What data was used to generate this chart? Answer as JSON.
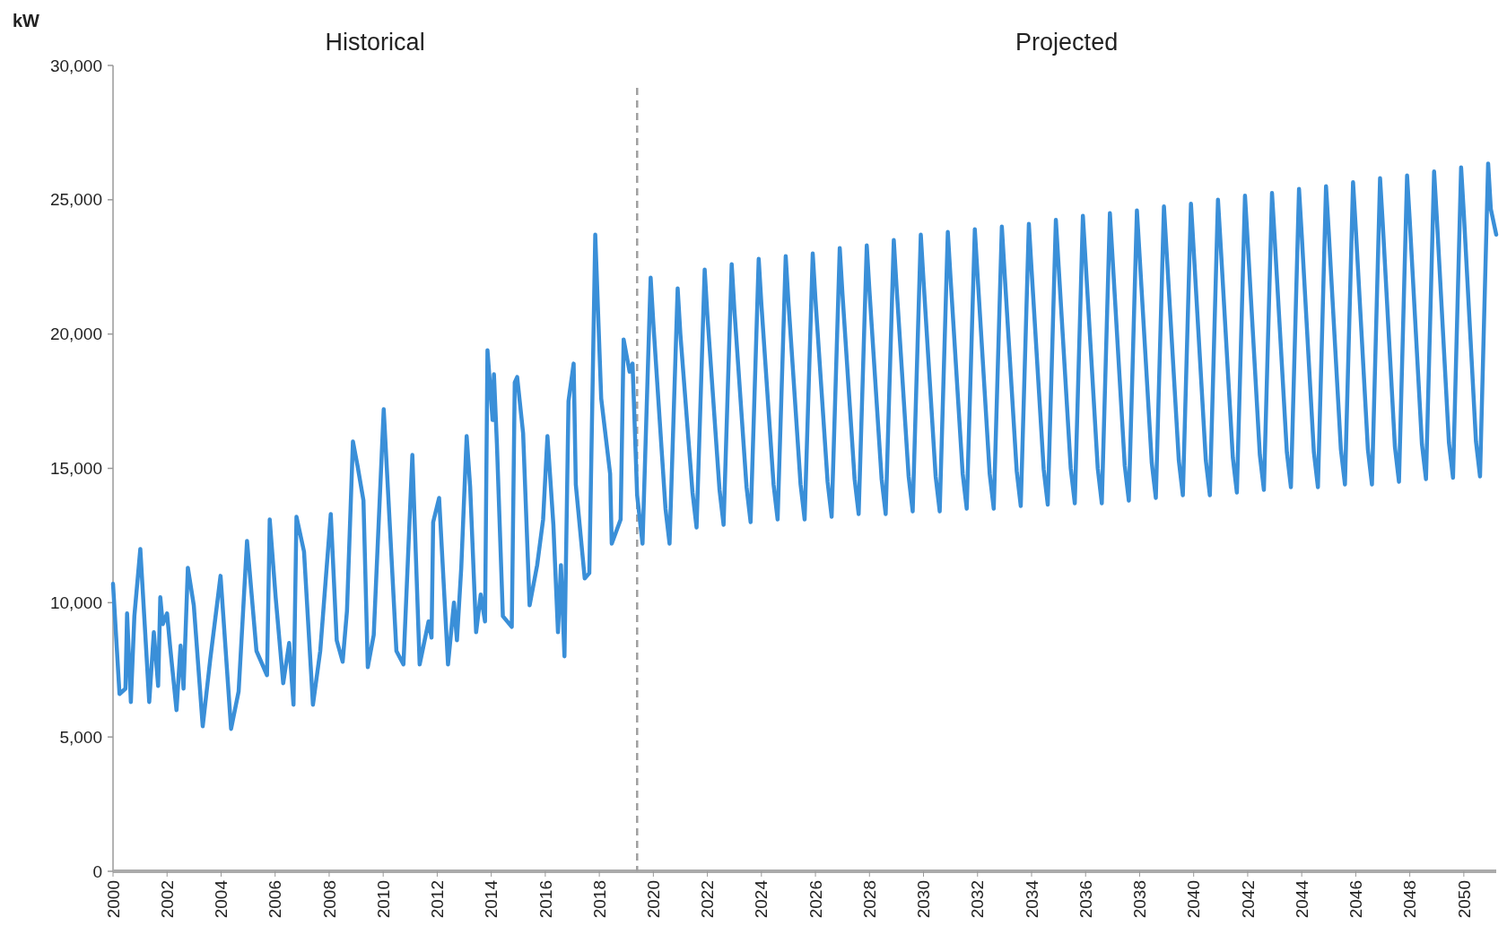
{
  "chart_data": {
    "type": "line",
    "ylabel": "kW",
    "annotations": [
      "Historical",
      "Projected"
    ],
    "xlim": [
      2000,
      2051.2
    ],
    "xticks": [
      2000,
      2002,
      2004,
      2006,
      2008,
      2010,
      2012,
      2014,
      2016,
      2018,
      2020,
      2022,
      2024,
      2026,
      2028,
      2030,
      2032,
      2034,
      2036,
      2038,
      2040,
      2042,
      2044,
      2046,
      2048,
      2050
    ],
    "ylim": [
      0,
      30000
    ],
    "yticks": [
      0,
      {
        "value": 5000,
        "label": "5,000"
      },
      {
        "value": 10000,
        "label": "10,000"
      },
      {
        "value": 15000,
        "label": "15,000"
      },
      {
        "value": 20000,
        "label": "20,000"
      },
      {
        "value": 25000,
        "label": "25,000"
      },
      {
        "value": 30000,
        "label": "30,000"
      }
    ],
    "ref_lines": [
      {
        "axis": "x",
        "value": 2019.4,
        "line_style": "dashed",
        "color": "#a0a0a0"
      }
    ],
    "series": [
      {
        "color": "#3a8fd8",
        "x": [
          2000.0,
          2000.24,
          2000.46,
          2000.52,
          2000.66,
          2000.79,
          2001.01,
          2001.34,
          2001.51,
          2001.67,
          2001.75,
          2001.84,
          2002.0,
          2002.11,
          2002.35,
          2002.5,
          2002.61,
          2002.77,
          2002.99,
          2003.32,
          2003.6,
          2003.98,
          2004.37,
          2004.65,
          2004.96,
          2005.31,
          2005.7,
          2005.8,
          2006.02,
          2006.3,
          2006.52,
          2006.68,
          2006.79,
          2007.07,
          2007.4,
          2007.67,
          2008.06,
          2008.28,
          2008.5,
          2008.66,
          2008.88,
          2009.05,
          2009.27,
          2009.43,
          2009.65,
          2010.02,
          2010.49,
          2010.75,
          2011.08,
          2011.35,
          2011.68,
          2011.79,
          2011.85,
          2012.07,
          2012.4,
          2012.62,
          2012.73,
          2012.89,
          2013.09,
          2013.22,
          2013.44,
          2013.61,
          2013.77,
          2013.86,
          2014.05,
          2014.1,
          2014.21,
          2014.43,
          2014.76,
          2014.87,
          2014.96,
          2015.18,
          2015.42,
          2015.7,
          2015.92,
          2016.08,
          2016.3,
          2016.47,
          2016.58,
          2016.71,
          2016.86,
          2017.05,
          2017.13,
          2017.46,
          2017.63,
          2017.85,
          2018.07,
          2018.4,
          2018.46,
          2018.79,
          2018.9,
          2019.12,
          2019.23,
          2019.4,
          2019.6,
          2019.9,
          2020.0,
          2020.45,
          2020.6,
          2020.9,
          2021.0,
          2021.45,
          2021.6,
          2021.9,
          2022.0,
          2022.45,
          2022.6,
          2022.9,
          2023.0,
          2023.45,
          2023.6,
          2023.9,
          2024.0,
          2024.45,
          2024.6,
          2024.9,
          2025.0,
          2025.45,
          2025.6,
          2025.9,
          2026.0,
          2026.45,
          2026.6,
          2026.9,
          2027.0,
          2027.45,
          2027.6,
          2027.9,
          2028.0,
          2028.45,
          2028.6,
          2028.9,
          2029.0,
          2029.45,
          2029.6,
          2029.9,
          2030.0,
          2030.45,
          2030.6,
          2030.9,
          2031.0,
          2031.45,
          2031.6,
          2031.9,
          2032.0,
          2032.45,
          2032.6,
          2032.9,
          2033.0,
          2033.45,
          2033.6,
          2033.9,
          2034.0,
          2034.45,
          2034.6,
          2034.9,
          2035.0,
          2035.45,
          2035.6,
          2035.9,
          2036.0,
          2036.45,
          2036.6,
          2036.9,
          2037.0,
          2037.45,
          2037.6,
          2037.9,
          2038.0,
          2038.45,
          2038.6,
          2038.9,
          2039.0,
          2039.45,
          2039.6,
          2039.9,
          2040.0,
          2040.45,
          2040.6,
          2040.9,
          2041.0,
          2041.45,
          2041.6,
          2041.9,
          2042.0,
          2042.45,
          2042.6,
          2042.9,
          2043.0,
          2043.45,
          2043.6,
          2043.9,
          2044.0,
          2044.45,
          2044.6,
          2044.9,
          2045.0,
          2045.45,
          2045.6,
          2045.9,
          2046.0,
          2046.45,
          2046.6,
          2046.9,
          2047.0,
          2047.45,
          2047.6,
          2047.9,
          2048.0,
          2048.45,
          2048.6,
          2048.9,
          2049.0,
          2049.45,
          2049.6,
          2049.9,
          2050.0,
          2050.45,
          2050.6,
          2050.9,
          2051.0,
          2051.2
        ],
        "values": [
          10700,
          6600,
          6800,
          9600,
          6300,
          9500,
          12000,
          6300,
          8900,
          6900,
          10200,
          9200,
          9600,
          8400,
          6000,
          8400,
          6800,
          11300,
          9900,
          5400,
          7900,
          11000,
          5300,
          6700,
          12300,
          8200,
          7300,
          13100,
          10200,
          7000,
          8500,
          6200,
          13200,
          11900,
          6200,
          8200,
          13300,
          8600,
          7800,
          9700,
          16000,
          15100,
          13800,
          7600,
          8800,
          17200,
          8200,
          7700,
          15500,
          7700,
          9300,
          8700,
          13000,
          13900,
          7700,
          10000,
          8600,
          11300,
          16200,
          14300,
          8900,
          10300,
          9300,
          19400,
          16800,
          18500,
          15900,
          9500,
          9100,
          18200,
          18400,
          16300,
          9900,
          11400,
          13100,
          16200,
          12900,
          8900,
          11400,
          8000,
          17500,
          18900,
          14400,
          10900,
          11100,
          23700,
          17600,
          14800,
          12200,
          13100,
          19800,
          18600,
          18900,
          14000,
          12200,
          22100,
          20400,
          13500,
          12200,
          21700,
          20000,
          14100,
          12800,
          22400,
          20700,
          14200,
          12900,
          22600,
          20900,
          14300,
          13000,
          22800,
          21100,
          14400,
          13100,
          22900,
          21200,
          14400,
          13100,
          23000,
          21300,
          14500,
          13200,
          23200,
          21500,
          14600,
          13300,
          23300,
          21600,
          14600,
          13300,
          23500,
          21800,
          14700,
          13400,
          23700,
          22000,
          14700,
          13400,
          23800,
          22100,
          14800,
          13500,
          23900,
          22200,
          14800,
          13500,
          24000,
          22300,
          14900,
          13600,
          24100,
          22400,
          14950,
          13650,
          24250,
          22550,
          15000,
          13700,
          24400,
          22700,
          15000,
          13700,
          24500,
          22800,
          15100,
          13800,
          24600,
          22900,
          15200,
          13900,
          24750,
          23050,
          15300,
          14000,
          24850,
          23150,
          15300,
          14000,
          25000,
          23300,
          15400,
          14100,
          25150,
          23450,
          15500,
          14200,
          25250,
          23550,
          15600,
          14300,
          25400,
          23700,
          15600,
          14300,
          25500,
          23800,
          15700,
          14400,
          25650,
          23950,
          15700,
          14400,
          25800,
          24100,
          15800,
          14500,
          25900,
          24200,
          15900,
          14600,
          26050,
          24350,
          15950,
          14650,
          26200,
          24500,
          16000,
          14700,
          26350,
          24650,
          23700
        ]
      }
    ]
  }
}
